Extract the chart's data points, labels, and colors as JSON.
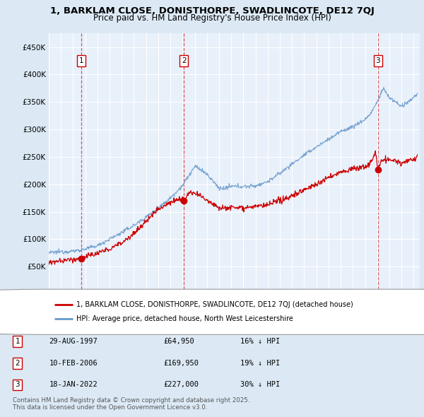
{
  "title_line1": "1, BARKLAM CLOSE, DONISTHORPE, SWADLINCOTE, DE12 7QJ",
  "title_line2": "Price paid vs. HM Land Registry's House Price Index (HPI)",
  "legend_label_red": "1, BARKLAM CLOSE, DONISTHORPE, SWADLINCOTE, DE12 7QJ (detached house)",
  "legend_label_blue": "HPI: Average price, detached house, North West Leicestershire",
  "copyright_text": "Contains HM Land Registry data © Crown copyright and database right 2025.\nThis data is licensed under the Open Government Licence v3.0.",
  "transactions": [
    {
      "num": 1,
      "date": "29-AUG-1997",
      "price": 64950,
      "note": "16% ↓ HPI",
      "year": 1997.66
    },
    {
      "num": 2,
      "date": "10-FEB-2006",
      "price": 169950,
      "note": "19% ↓ HPI",
      "year": 2006.11
    },
    {
      "num": 3,
      "date": "18-JAN-2022",
      "price": 227000,
      "note": "30% ↓ HPI",
      "year": 2022.05
    }
  ],
  "ylim": [
    0,
    475000
  ],
  "xlim_start": 1995.0,
  "xlim_end": 2025.5,
  "bg_color": "#dce9f5",
  "plot_bg_color": "#e8f0fa",
  "red_color": "#cc0000",
  "blue_color": "#6699cc",
  "grid_color": "#ffffff"
}
